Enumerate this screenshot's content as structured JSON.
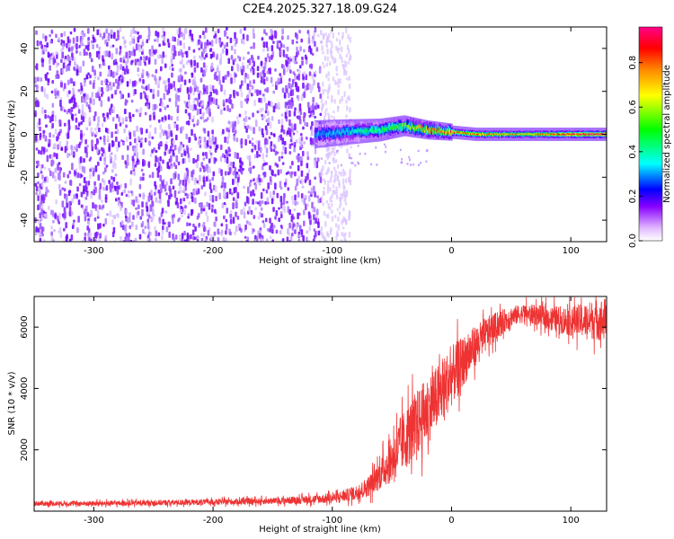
{
  "title": "C2E4.2025.327.18.09.G24",
  "chart_data": [
    {
      "type": "heatmap",
      "xlabel": "Height of straight line (km)",
      "ylabel": "Frequency (Hz)",
      "xlim": [
        -350,
        130
      ],
      "ylim": [
        -50,
        50
      ],
      "xticks": [
        -300,
        -200,
        -100,
        0,
        100
      ],
      "xtick_labels": [
        "-300",
        "-200",
        "-100",
        "0",
        "100"
      ],
      "yticks": [
        -40,
        -20,
        0,
        20,
        40
      ],
      "ytick_labels": [
        "-40",
        "-20",
        "0",
        "20",
        "40"
      ],
      "noise_extent_km": [
        -350,
        -110
      ],
      "signal_band": {
        "description": "dominant frequency near 0 Hz",
        "x": [
          -115,
          -90,
          -60,
          -40,
          -20,
          0,
          20,
          60,
          100,
          130
        ],
        "freq_center": [
          0,
          1,
          2,
          4,
          2,
          1,
          0,
          0,
          0,
          0
        ],
        "amplitude": [
          0.3,
          0.35,
          0.45,
          0.55,
          0.75,
          0.8,
          0.75,
          0.7,
          0.85,
          0.95
        ]
      }
    },
    {
      "type": "colorbar",
      "label": "Normalized spectral amplitude",
      "range": [
        0,
        0.96
      ],
      "ticks": [
        0,
        0.2,
        0.4,
        0.6,
        0.8
      ],
      "tick_labels": [
        "0.0",
        "0.2",
        "0.4",
        "0.6",
        "0.8"
      ],
      "colors": [
        "#ffffff",
        "#e0b8ff",
        "#8800ff",
        "#0000ff",
        "#00ffff",
        "#00ff00",
        "#ffff00",
        "#ff8800",
        "#ff0000",
        "#ff0088"
      ]
    },
    {
      "type": "line",
      "xlabel": "Height of straight line (km)",
      "ylabel": "SNR (10 * v/v)",
      "xlim": [
        -350,
        130
      ],
      "ylim": [
        0,
        7000
      ],
      "xticks": [
        -300,
        -200,
        -100,
        0,
        100
      ],
      "xtick_labels": [
        "-300",
        "-200",
        "-100",
        "0",
        "100"
      ],
      "yticks": [
        2000,
        4000,
        6000
      ],
      "ytick_labels": [
        "2000",
        "4000",
        "6000"
      ],
      "color": "#ee3333",
      "series": [
        {
          "name": "SNR",
          "x": [
            -350,
            -300,
            -250,
            -200,
            -150,
            -120,
            -100,
            -90,
            -80,
            -70,
            -60,
            -50,
            -40,
            -30,
            -20,
            -10,
            0,
            10,
            20,
            30,
            40,
            50,
            60,
            70,
            80,
            90,
            100,
            110,
            120,
            130
          ],
          "y": [
            250,
            250,
            270,
            300,
            330,
            380,
            420,
            500,
            600,
            800,
            1200,
            1700,
            2300,
            2800,
            3300,
            3800,
            4400,
            4900,
            5400,
            5800,
            6100,
            6350,
            6450,
            6400,
            6300,
            6250,
            6200,
            6200,
            6250,
            6250
          ],
          "spread": [
            150,
            150,
            160,
            170,
            190,
            250,
            300,
            350,
            450,
            600,
            900,
            1400,
            1800,
            2000,
            2000,
            1900,
            1800,
            1500,
            1200,
            1000,
            800,
            600,
            550,
            600,
            700,
            800,
            900,
            1000,
            1200,
            1300
          ]
        }
      ]
    }
  ]
}
